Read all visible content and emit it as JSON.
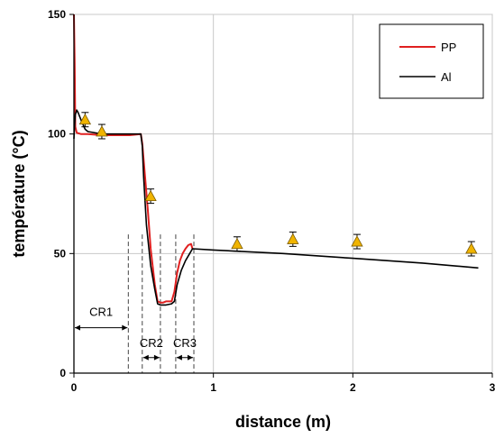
{
  "chart_data": {
    "type": "line",
    "title": "",
    "xlabel": "distance (m)",
    "ylabel": "température (°C)",
    "xlim": [
      0,
      3
    ],
    "ylim": [
      0,
      150
    ],
    "xticks": [
      0,
      1,
      2,
      3
    ],
    "yticks": [
      0,
      50,
      100,
      150
    ],
    "grid": true,
    "legend_position": "top-right",
    "series": [
      {
        "name": "PP",
        "color": "#e02020",
        "x": [
          0,
          0.005,
          0.01,
          0.02,
          0.05,
          0.1,
          0.2,
          0.3,
          0.4,
          0.48,
          0.49,
          0.51,
          0.53,
          0.55,
          0.58,
          0.6,
          0.62,
          0.64,
          0.66,
          0.7,
          0.72,
          0.74,
          0.76,
          0.78,
          0.8,
          0.82,
          0.84,
          0.85
        ],
        "y": [
          150,
          130,
          103,
          100.5,
          100,
          100,
          99.5,
          99.5,
          99.5,
          100,
          96,
          82,
          68,
          52,
          37,
          30,
          29.5,
          29.5,
          30,
          30,
          34,
          42,
          47,
          50,
          52,
          53.5,
          54,
          52
        ]
      },
      {
        "name": "Al",
        "color": "#000000",
        "x": [
          0,
          0.005,
          0.01,
          0.02,
          0.03,
          0.05,
          0.08,
          0.1,
          0.2,
          0.3,
          0.4,
          0.48,
          0.49,
          0.5,
          0.52,
          0.55,
          0.58,
          0.6,
          0.62,
          0.66,
          0.7,
          0.72,
          0.74,
          0.77,
          0.8,
          0.83,
          0.85,
          1.0,
          1.5,
          2.0,
          2.5,
          2.9
        ],
        "y": [
          98,
          104,
          108,
          110,
          109,
          106,
          102,
          101,
          100,
          100,
          100,
          100,
          95,
          82,
          62,
          45,
          35,
          29,
          28.5,
          28.5,
          29,
          30,
          37,
          43,
          47,
          50,
          52,
          51.5,
          50,
          48,
          46,
          44
        ]
      }
    ],
    "measurements": {
      "x": [
        0.08,
        0.2,
        0.55,
        1.17,
        1.57,
        2.03,
        2.85
      ],
      "y": [
        106,
        101,
        74,
        54,
        56,
        55,
        52
      ],
      "err": [
        3,
        3,
        3,
        3,
        3,
        3,
        3
      ],
      "color": "#f0b400"
    },
    "regions": [
      {
        "label": "CR1",
        "x_start": 0,
        "x_end": 0.39
      },
      {
        "label": "CR2",
        "x_start": 0.49,
        "x_end": 0.62
      },
      {
        "label": "CR3",
        "x_start": 0.73,
        "x_end": 0.86
      }
    ]
  }
}
